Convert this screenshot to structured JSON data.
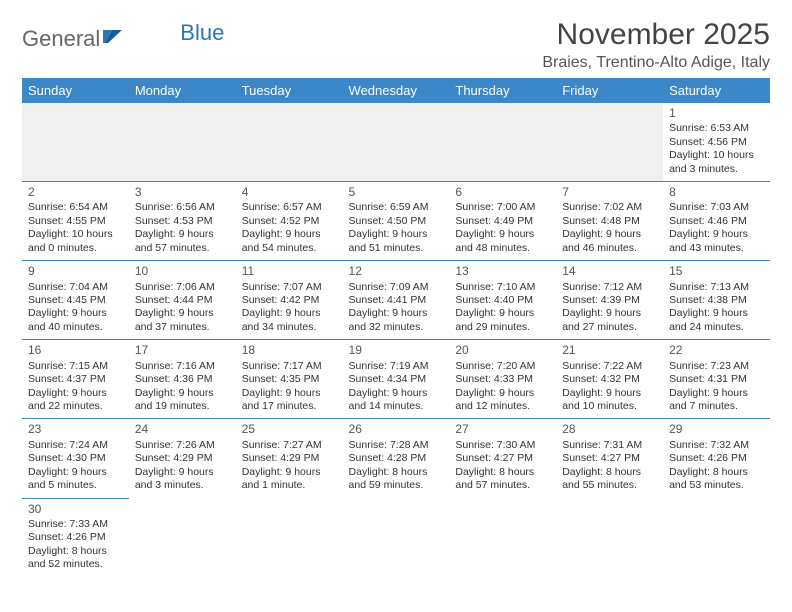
{
  "logo": {
    "text_general": "General",
    "text_blue": "Blue"
  },
  "title": "November 2025",
  "location": "Braies, Trentino-Alto Adige, Italy",
  "colors": {
    "header_bg": "#3b87c8",
    "header_text": "#ffffff",
    "row_divider": "#3b87c8",
    "spacer_bg": "#f0f0f0",
    "text": "#333333"
  },
  "day_headers": [
    "Sunday",
    "Monday",
    "Tuesday",
    "Wednesday",
    "Thursday",
    "Friday",
    "Saturday"
  ],
  "weeks": [
    [
      null,
      null,
      null,
      null,
      null,
      null,
      {
        "n": "1",
        "sr": "6:53 AM",
        "ss": "4:56 PM",
        "dl1": "10 hours",
        "dl2": "and 3 minutes."
      }
    ],
    [
      {
        "n": "2",
        "sr": "6:54 AM",
        "ss": "4:55 PM",
        "dl1": "10 hours",
        "dl2": "and 0 minutes."
      },
      {
        "n": "3",
        "sr": "6:56 AM",
        "ss": "4:53 PM",
        "dl1": "9 hours",
        "dl2": "and 57 minutes."
      },
      {
        "n": "4",
        "sr": "6:57 AM",
        "ss": "4:52 PM",
        "dl1": "9 hours",
        "dl2": "and 54 minutes."
      },
      {
        "n": "5",
        "sr": "6:59 AM",
        "ss": "4:50 PM",
        "dl1": "9 hours",
        "dl2": "and 51 minutes."
      },
      {
        "n": "6",
        "sr": "7:00 AM",
        "ss": "4:49 PM",
        "dl1": "9 hours",
        "dl2": "and 48 minutes."
      },
      {
        "n": "7",
        "sr": "7:02 AM",
        "ss": "4:48 PM",
        "dl1": "9 hours",
        "dl2": "and 46 minutes."
      },
      {
        "n": "8",
        "sr": "7:03 AM",
        "ss": "4:46 PM",
        "dl1": "9 hours",
        "dl2": "and 43 minutes."
      }
    ],
    [
      {
        "n": "9",
        "sr": "7:04 AM",
        "ss": "4:45 PM",
        "dl1": "9 hours",
        "dl2": "and 40 minutes."
      },
      {
        "n": "10",
        "sr": "7:06 AM",
        "ss": "4:44 PM",
        "dl1": "9 hours",
        "dl2": "and 37 minutes."
      },
      {
        "n": "11",
        "sr": "7:07 AM",
        "ss": "4:42 PM",
        "dl1": "9 hours",
        "dl2": "and 34 minutes."
      },
      {
        "n": "12",
        "sr": "7:09 AM",
        "ss": "4:41 PM",
        "dl1": "9 hours",
        "dl2": "and 32 minutes."
      },
      {
        "n": "13",
        "sr": "7:10 AM",
        "ss": "4:40 PM",
        "dl1": "9 hours",
        "dl2": "and 29 minutes."
      },
      {
        "n": "14",
        "sr": "7:12 AM",
        "ss": "4:39 PM",
        "dl1": "9 hours",
        "dl2": "and 27 minutes."
      },
      {
        "n": "15",
        "sr": "7:13 AM",
        "ss": "4:38 PM",
        "dl1": "9 hours",
        "dl2": "and 24 minutes."
      }
    ],
    [
      {
        "n": "16",
        "sr": "7:15 AM",
        "ss": "4:37 PM",
        "dl1": "9 hours",
        "dl2": "and 22 minutes."
      },
      {
        "n": "17",
        "sr": "7:16 AM",
        "ss": "4:36 PM",
        "dl1": "9 hours",
        "dl2": "and 19 minutes."
      },
      {
        "n": "18",
        "sr": "7:17 AM",
        "ss": "4:35 PM",
        "dl1": "9 hours",
        "dl2": "and 17 minutes."
      },
      {
        "n": "19",
        "sr": "7:19 AM",
        "ss": "4:34 PM",
        "dl1": "9 hours",
        "dl2": "and 14 minutes."
      },
      {
        "n": "20",
        "sr": "7:20 AM",
        "ss": "4:33 PM",
        "dl1": "9 hours",
        "dl2": "and 12 minutes."
      },
      {
        "n": "21",
        "sr": "7:22 AM",
        "ss": "4:32 PM",
        "dl1": "9 hours",
        "dl2": "and 10 minutes."
      },
      {
        "n": "22",
        "sr": "7:23 AM",
        "ss": "4:31 PM",
        "dl1": "9 hours",
        "dl2": "and 7 minutes."
      }
    ],
    [
      {
        "n": "23",
        "sr": "7:24 AM",
        "ss": "4:30 PM",
        "dl1": "9 hours",
        "dl2": "and 5 minutes."
      },
      {
        "n": "24",
        "sr": "7:26 AM",
        "ss": "4:29 PM",
        "dl1": "9 hours",
        "dl2": "and 3 minutes."
      },
      {
        "n": "25",
        "sr": "7:27 AM",
        "ss": "4:29 PM",
        "dl1": "9 hours",
        "dl2": "and 1 minute."
      },
      {
        "n": "26",
        "sr": "7:28 AM",
        "ss": "4:28 PM",
        "dl1": "8 hours",
        "dl2": "and 59 minutes."
      },
      {
        "n": "27",
        "sr": "7:30 AM",
        "ss": "4:27 PM",
        "dl1": "8 hours",
        "dl2": "and 57 minutes."
      },
      {
        "n": "28",
        "sr": "7:31 AM",
        "ss": "4:27 PM",
        "dl1": "8 hours",
        "dl2": "and 55 minutes."
      },
      {
        "n": "29",
        "sr": "7:32 AM",
        "ss": "4:26 PM",
        "dl1": "8 hours",
        "dl2": "and 53 minutes."
      }
    ],
    [
      {
        "n": "30",
        "sr": "7:33 AM",
        "ss": "4:26 PM",
        "dl1": "8 hours",
        "dl2": "and 52 minutes."
      },
      null,
      null,
      null,
      null,
      null,
      null
    ]
  ],
  "labels": {
    "sunrise": "Sunrise:",
    "sunset": "Sunset:",
    "daylight": "Daylight:"
  }
}
